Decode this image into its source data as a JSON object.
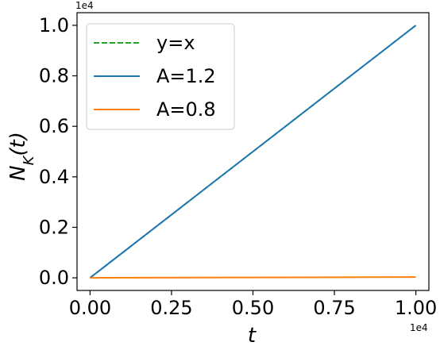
{
  "chart_data": {
    "type": "line",
    "xlabel": "t",
    "ylabel": "N_K(t)",
    "xlim": [
      -400,
      10400
    ],
    "ylim": [
      -500,
      10500
    ],
    "x_multiplier": "1e4",
    "y_multiplier": "1e4",
    "x_ticks": [
      0,
      2500,
      5000,
      7500,
      10000
    ],
    "x_tick_labels": [
      "0.00",
      "0.25",
      "0.50",
      "0.75",
      "1.00"
    ],
    "y_ticks": [
      0,
      2000,
      4000,
      6000,
      8000,
      10000
    ],
    "y_tick_labels": [
      "0.0",
      "0.2",
      "0.4",
      "0.6",
      "0.8",
      "1.0"
    ],
    "grid": false,
    "legend_position": "top-left",
    "series": [
      {
        "name": "y=x",
        "color": "#2ca02c",
        "dashed": true,
        "x": [
          0,
          10000
        ],
        "y": [
          0,
          10000
        ]
      },
      {
        "name": "A=1.2",
        "color": "#1f77b4",
        "dashed": false,
        "x": [
          0,
          10000
        ],
        "y": [
          0,
          10000
        ]
      },
      {
        "name": "A=0.8",
        "color": "#ff7f0e",
        "dashed": false,
        "x": [
          0,
          10000
        ],
        "y": [
          0,
          30
        ]
      }
    ]
  }
}
